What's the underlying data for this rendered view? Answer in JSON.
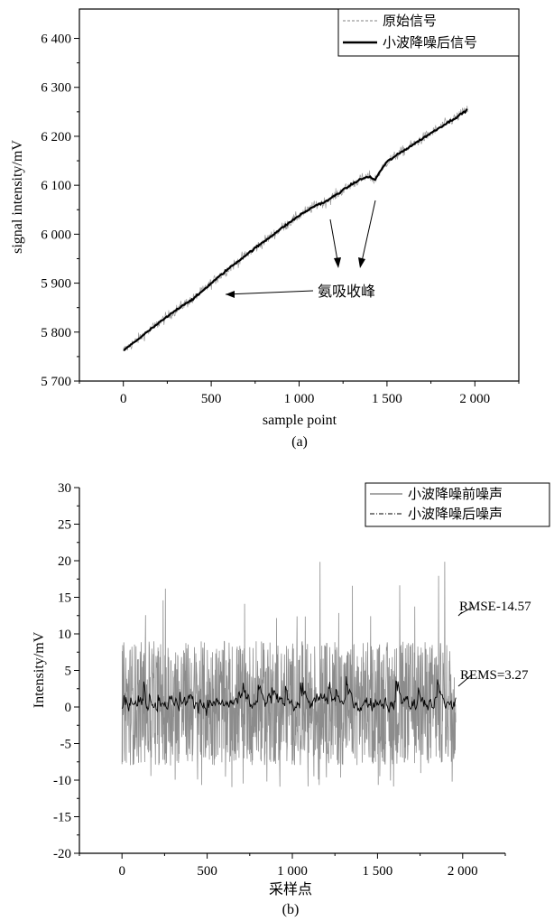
{
  "chart_data": [
    {
      "type": "line",
      "panel_label": "(a)",
      "xlabel": "sample point",
      "ylabel": "signal intensity/mV",
      "xlim": [
        -250,
        2250
      ],
      "ylim": [
        5700,
        6460
      ],
      "xticks": [
        0,
        500,
        1000,
        1500,
        2000
      ],
      "xtick_labels": [
        "0",
        "500",
        "1 000",
        "1 500",
        "2 000"
      ],
      "yticks": [
        5700,
        5800,
        5900,
        6000,
        6100,
        6200,
        6300,
        6400
      ],
      "ytick_labels": [
        "5 700",
        "5 800",
        "5 900",
        "6 000",
        "6 100",
        "6 200",
        "6 300",
        "6 400"
      ],
      "legend_position": "top-right",
      "series": [
        {
          "name": "原始信号",
          "color": "#9a9a9a",
          "style": "dashed",
          "noise_amplitude": 18
        },
        {
          "name": "小波降噪后信号",
          "color": "#000000",
          "style": "solid",
          "x": [
            0,
            100,
            200,
            300,
            350,
            400,
            500,
            600,
            700,
            800,
            900,
            1000,
            1100,
            1150,
            1200,
            1250,
            1300,
            1350,
            1400,
            1430,
            1460,
            1500,
            1600,
            1700,
            1800,
            1900,
            1960
          ],
          "y": [
            5762,
            5790,
            5818,
            5845,
            5858,
            5868,
            5900,
            5930,
            5958,
            5985,
            6012,
            6038,
            6060,
            6066,
            6078,
            6090,
            6102,
            6112,
            6118,
            6110,
            6128,
            6148,
            6172,
            6195,
            6218,
            6240,
            6255
          ]
        }
      ],
      "annotations": [
        {
          "text": "氨吸收峰",
          "points_to": [
            [
              560,
              5880
            ],
            [
              1150,
              6068
            ],
            [
              1420,
              6112
            ]
          ]
        }
      ]
    },
    {
      "type": "line",
      "panel_label": "(b)",
      "xlabel": "采样点",
      "ylabel": "Intensity/mV",
      "xlim": [
        -250,
        2250
      ],
      "ylim": [
        -20,
        30
      ],
      "xticks": [
        0,
        500,
        1000,
        1500,
        2000
      ],
      "xtick_labels": [
        "0",
        "500",
        "1 000",
        "1 500",
        "2 000"
      ],
      "yticks": [
        -20,
        -15,
        -10,
        -5,
        0,
        5,
        10,
        15,
        20,
        25,
        30
      ],
      "ytick_labels": [
        "-20",
        "-15",
        "-10",
        "-5",
        "0",
        "5",
        "10",
        "15",
        "20",
        "25",
        "30"
      ],
      "legend_position": "top-right",
      "series": [
        {
          "name": "小波降噪前噪声",
          "color": "#8c8c8c",
          "style": "solid",
          "x_range": [
            0,
            1960
          ],
          "band": [
            -8,
            9
          ],
          "peak_range": [
            -11,
            20
          ]
        },
        {
          "name": "小波降噪后噪声",
          "color": "#000000",
          "style": "dash-dot",
          "x_range": [
            0,
            1960
          ],
          "band": [
            -2,
            4
          ]
        }
      ],
      "annotations": [
        {
          "text": "RMSE-14.57",
          "target": [
            1970,
            7
          ]
        },
        {
          "text": "REMS=3.27",
          "target": [
            1970,
            -1
          ]
        }
      ]
    }
  ]
}
